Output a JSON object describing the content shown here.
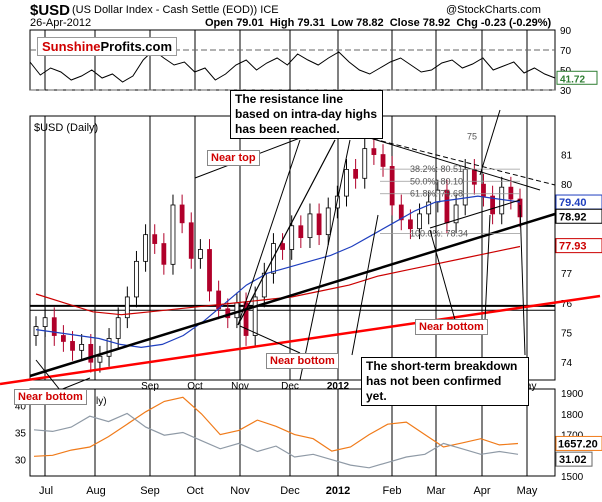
{
  "header": {
    "symbol": "$USD",
    "subtitle": "(US Dollar Index - Cash Settle (EOD)) ICE",
    "date": "26-Apr-2012",
    "open_label": "Open",
    "open": "79.01",
    "high_label": "High",
    "high": "79.31",
    "low_label": "Low",
    "low": "78.82",
    "close_label": "Close",
    "close": "78.92",
    "chg_label": "Chg",
    "chg": "-0.23 (-0.29%)",
    "credit": "@StockCharts.com"
  },
  "logo": {
    "part1": "Sunshine",
    "part2": "Profits.com"
  },
  "rsi_panel": {
    "axis_ticks": [
      "90",
      "70",
      "50",
      "30"
    ],
    "last_value": "41.72"
  },
  "main_panel": {
    "label": "$USD (Daily)",
    "y_ticks": [
      "81",
      "80",
      "79",
      "78",
      "77",
      "76",
      "75",
      "74"
    ],
    "price_tag": "78.92",
    "ma_tag_upper": "79.40",
    "ma_tag_lower": "77.93",
    "fib_labels": [
      "38.2%: 80.51",
      "50.0%: 80.10",
      "61.8%: 79.68",
      "100.0%: 78.34"
    ],
    "partial_label": "75"
  },
  "bottom_panel": {
    "left_ticks": [
      "40",
      "35",
      "30"
    ],
    "right_ticks": [
      "1900",
      "1800",
      "1700",
      "1600",
      "1500"
    ],
    "gold_tag": "1657.20",
    "usd_tag": "31.02",
    "label_fragment": "ly)"
  },
  "x_axis": {
    "main_ticks": [
      "Sep",
      "Oct",
      "Nov",
      "Dec",
      "2012",
      "Feb",
      "Mar",
      "Apr",
      "May"
    ],
    "bottom_ticks": [
      "Jul",
      "Aug",
      "Sep",
      "Oct",
      "Nov",
      "Dec",
      "2012",
      "Feb",
      "Mar",
      "Apr",
      "May"
    ]
  },
  "annotations": {
    "resistance": "The resistance line based on intra-day highs has been reached.",
    "near_top": "Near top",
    "near_bottom_left": "Near bottom",
    "near_bottom_nov": "Near bottom",
    "near_bottom_mar": "Near bottom",
    "breakdown": "The short-term breakdown has not been confirmed yet."
  },
  "colors": {
    "price_up": "#000000",
    "price_down": "#b0002a",
    "ma50": "#1f3fbf",
    "ma200": "#cc0000",
    "support_red": "#ff0000",
    "gold_line": "#f07b1a",
    "usd_line": "#8f9aa6",
    "label_red": "#d00000"
  },
  "chart_data": [
    {
      "type": "line",
      "title": "RSI(14)",
      "ylim": [
        30,
        90
      ],
      "last_value": 41.72,
      "x": [
        0,
        10,
        20,
        30,
        40,
        50,
        60,
        70,
        80,
        90,
        100,
        110,
        120,
        130,
        140,
        150,
        160,
        170,
        180,
        190,
        200,
        210,
        220,
        230,
        240,
        250,
        260,
        270,
        280,
        290,
        300,
        310,
        320,
        330,
        340,
        350,
        360,
        370,
        380,
        390,
        400,
        410,
        420,
        430,
        440,
        450,
        460,
        470,
        480,
        490,
        500,
        510
      ],
      "values": [
        58,
        45,
        52,
        48,
        40,
        44,
        50,
        42,
        46,
        38,
        44,
        60,
        70,
        62,
        55,
        58,
        48,
        52,
        40,
        46,
        55,
        60,
        50,
        57,
        62,
        55,
        66,
        60,
        55,
        62,
        68,
        58,
        50,
        46,
        52,
        58,
        62,
        55,
        48,
        50,
        57,
        60,
        52,
        56,
        62,
        50,
        54,
        58,
        47,
        52,
        46,
        42
      ]
    },
    {
      "type": "candlestick",
      "title": "$USD (Daily)",
      "ylim": [
        73.4,
        82.3
      ],
      "x_ticks": [
        "Sep",
        "Oct",
        "Nov",
        "Dec",
        "2012",
        "Feb",
        "Mar",
        "Apr",
        "May"
      ],
      "close_series": [
        75.2,
        75.5,
        74.9,
        74.7,
        74.4,
        74.6,
        74.0,
        74.2,
        74.8,
        75.5,
        76.2,
        77.4,
        78.3,
        78.0,
        77.3,
        79.3,
        78.7,
        77.5,
        77.8,
        76.4,
        75.8,
        75.5,
        76.0,
        74.9,
        76.2,
        77.0,
        78.0,
        77.8,
        78.6,
        78.2,
        79.0,
        78.3,
        79.2,
        79.6,
        80.5,
        80.2,
        81.2,
        81.0,
        80.6,
        79.3,
        78.8,
        78.5,
        79.0,
        79.4,
        79.8,
        78.7,
        79.3,
        80.5,
        80.0,
        79.6,
        79.0,
        79.9,
        79.5,
        78.9
      ],
      "series": [
        {
          "name": "MA(50)",
          "values": [
            75.1,
            75.0,
            74.9,
            74.8,
            74.6,
            74.5,
            74.6,
            74.9,
            75.4,
            76.0,
            76.6,
            77.0,
            77.2,
            77.4,
            77.6,
            77.9,
            78.3,
            78.7,
            79.1,
            79.4,
            79.5,
            79.6,
            79.5,
            79.4
          ]
        },
        {
          "name": "MA(200)",
          "values": [
            76.3,
            76.0,
            75.7,
            75.6,
            75.7,
            75.8,
            75.9,
            76.0,
            76.1,
            76.2,
            76.4,
            76.6,
            76.9,
            77.1,
            77.3,
            77.5,
            77.7,
            77.9
          ]
        }
      ]
    },
    {
      "type": "line",
      "title": "Gold / USD comparison",
      "ylim_left": [
        27,
        43
      ],
      "ylim_right": [
        1500,
        1920
      ],
      "series": [
        {
          "name": "Gold",
          "values": [
            1595,
            1600,
            1625,
            1640,
            1690,
            1750,
            1810,
            1860,
            1880,
            1800,
            1700,
            1720,
            1770,
            1740,
            1700,
            1680,
            1620,
            1640,
            1700,
            1750,
            1760,
            1700,
            1640,
            1660,
            1680,
            1650,
            1657
          ]
        },
        {
          "name": "USD",
          "values": [
            35.5,
            35.2,
            36.0,
            38.0,
            37.0,
            38.5,
            36.0,
            34.5,
            35.0,
            33.5,
            32.0,
            33.0,
            31.5,
            32.5,
            30.5,
            31.0,
            30.0,
            29.0,
            28.5,
            29.5,
            30.5,
            31.0,
            33.0,
            32.0,
            31.0,
            31.5,
            31.0
          ]
        }
      ]
    }
  ]
}
